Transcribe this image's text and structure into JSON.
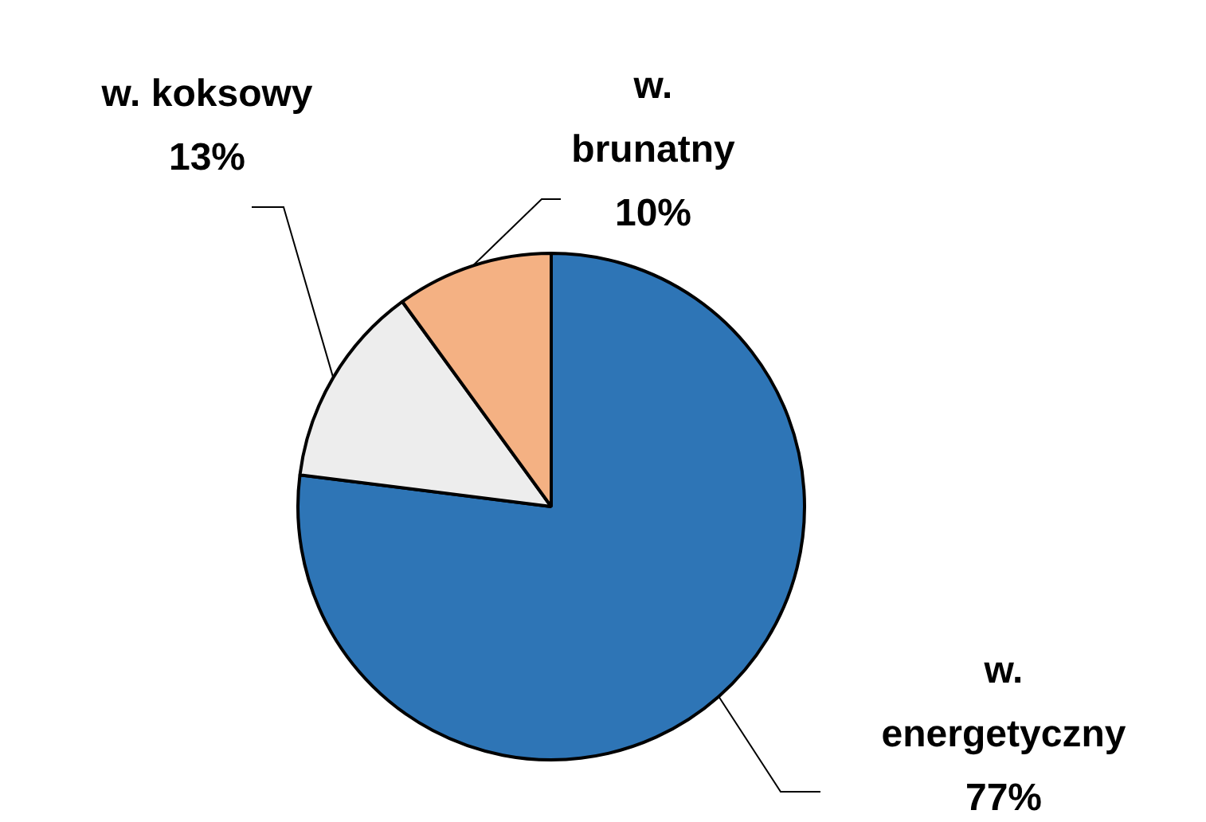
{
  "chart_data": {
    "type": "pie",
    "categories": [
      "w. energetyczny",
      "w. koksowy",
      "w. brunatny"
    ],
    "values": [
      77,
      13,
      10
    ],
    "colors": [
      "#2e75b6",
      "#ededed",
      "#f4b183"
    ],
    "value_labels": [
      "77%",
      "13%",
      "10%"
    ],
    "legend": false
  }
}
